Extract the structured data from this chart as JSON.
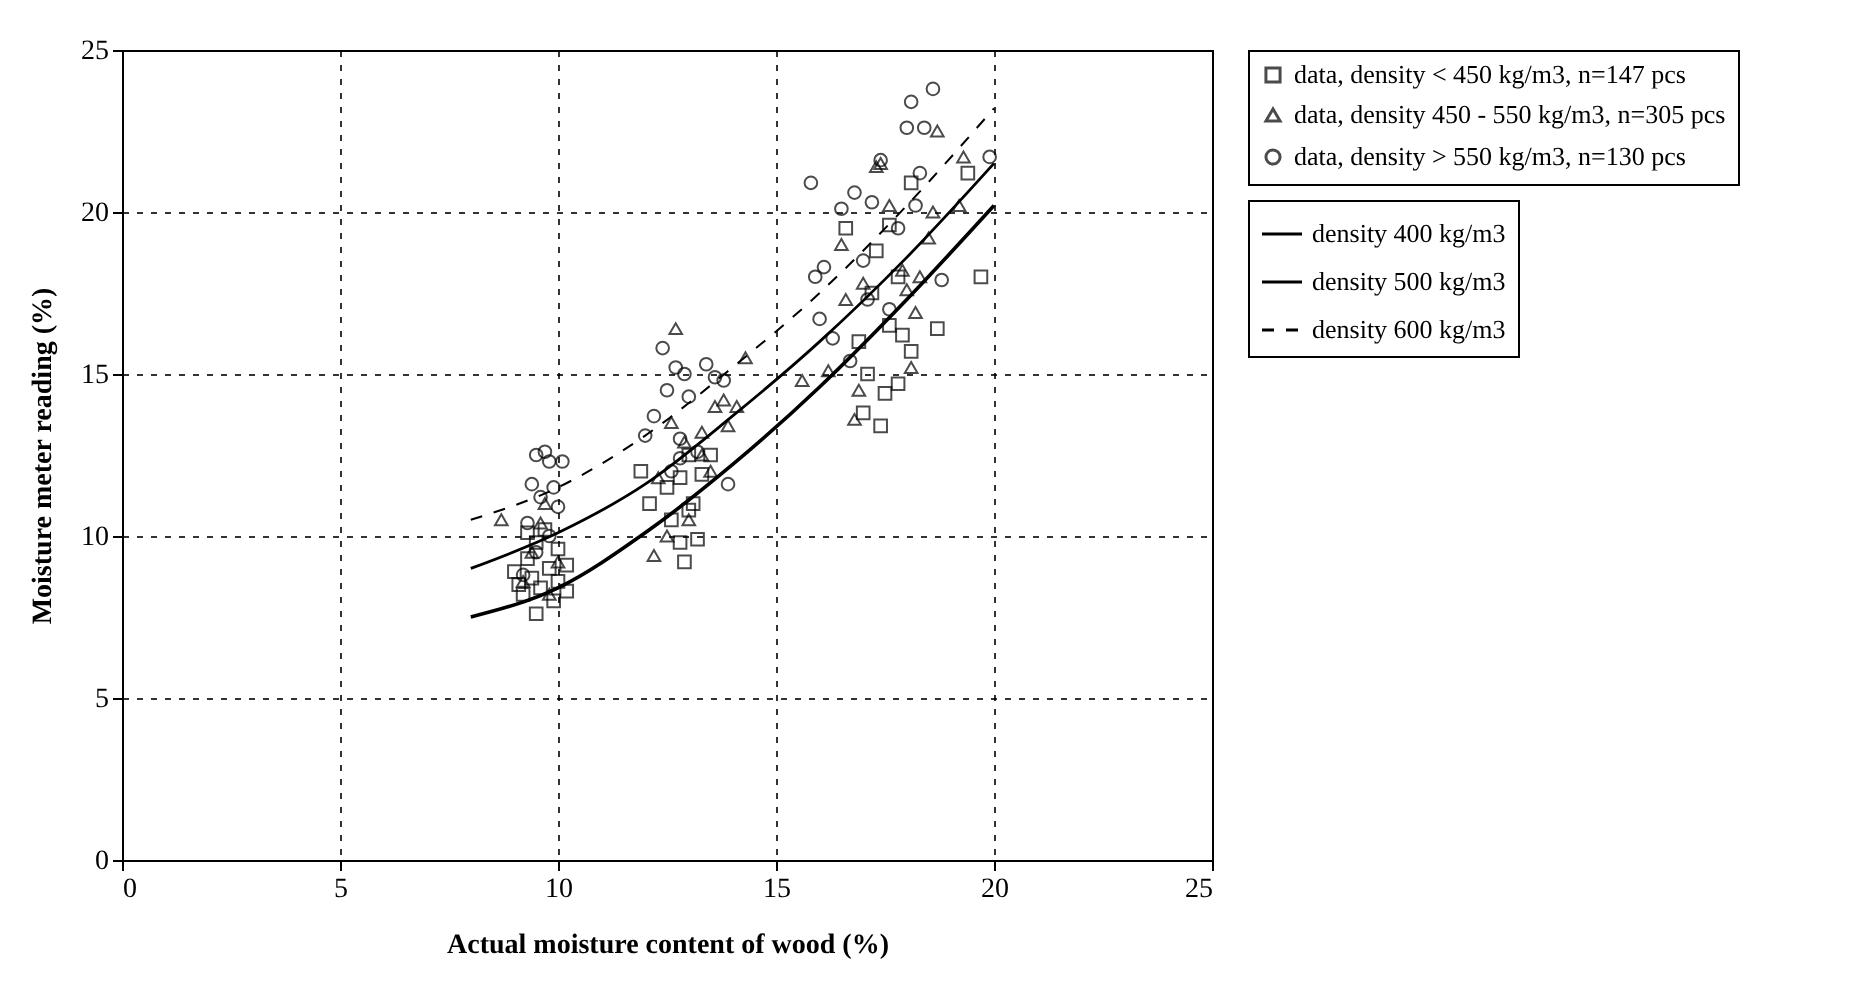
{
  "chart_data": {
    "type": "scatter",
    "xlabel": "Actual moisture content of wood (%)",
    "ylabel": "Moisture meter reading (%)",
    "xlim": [
      0,
      25
    ],
    "ylim": [
      0,
      25
    ],
    "xticks": [
      0,
      5,
      10,
      15,
      20,
      25
    ],
    "yticks": [
      0,
      5,
      10,
      15,
      20,
      25
    ],
    "grid": true,
    "legend": "right",
    "series": [
      {
        "name": "data, density < 450 kg/m3, n=147 pcs",
        "color": "#000000",
        "marker": "square",
        "x": [
          9.0,
          9.1,
          9.2,
          9.3,
          9.4,
          9.5,
          9.5,
          9.6,
          9.7,
          9.8,
          9.9,
          10.0,
          10.0,
          10.2,
          10.2,
          9.3,
          11.9,
          12.1,
          12.5,
          12.6,
          12.8,
          12.8,
          12.9,
          13.0,
          13.0,
          13.1,
          13.2,
          13.3,
          13.5,
          16.6,
          16.9,
          17.0,
          17.1,
          17.2,
          17.4,
          17.5,
          17.6,
          17.8,
          17.8,
          17.9,
          18.1,
          18.1,
          18.7,
          19.4,
          19.7,
          17.3,
          17.6
        ],
        "values": [
          8.9,
          8.5,
          8.2,
          9.3,
          8.7,
          7.6,
          9.8,
          8.4,
          10.2,
          9.0,
          8.0,
          8.6,
          9.6,
          9.1,
          8.3,
          10.1,
          12.0,
          11.0,
          11.5,
          10.5,
          9.8,
          11.8,
          9.2,
          10.8,
          12.5,
          11.0,
          9.9,
          11.9,
          12.5,
          19.5,
          16.0,
          13.8,
          15.0,
          17.5,
          13.4,
          14.4,
          16.5,
          14.7,
          18.0,
          16.2,
          15.7,
          20.9,
          16.4,
          21.2,
          18.0,
          18.8,
          19.6
        ]
      },
      {
        "name": "data, density 450 - 550 kg/m3, n=305 pcs",
        "color": "#000000",
        "marker": "triangle",
        "x": [
          8.7,
          9.2,
          9.4,
          9.6,
          9.8,
          10.0,
          9.7,
          12.2,
          12.3,
          12.5,
          12.6,
          12.7,
          12.9,
          13.0,
          13.3,
          13.5,
          13.6,
          13.8,
          13.9,
          14.1,
          14.3,
          13.3,
          15.6,
          16.2,
          16.5,
          16.6,
          16.8,
          16.9,
          17.0,
          17.3,
          17.4,
          17.6,
          17.9,
          18.0,
          18.2,
          18.3,
          18.5,
          18.6,
          18.7,
          19.2,
          19.3,
          18.1
        ],
        "values": [
          10.5,
          8.6,
          9.5,
          10.4,
          8.2,
          9.2,
          11.0,
          9.4,
          11.8,
          10.0,
          13.5,
          16.4,
          12.9,
          10.5,
          13.2,
          12.0,
          14.0,
          14.2,
          13.4,
          14.0,
          15.5,
          12.5,
          14.8,
          15.1,
          19.0,
          17.3,
          13.6,
          14.5,
          17.8,
          21.4,
          21.5,
          20.2,
          18.2,
          17.6,
          16.9,
          18.0,
          19.2,
          20.0,
          22.5,
          20.2,
          21.7,
          15.2
        ]
      },
      {
        "name": "data, density > 550 kg/m3, n=130 pcs",
        "color": "#000000",
        "marker": "circle",
        "x": [
          9.2,
          9.3,
          9.4,
          9.5,
          9.6,
          9.7,
          9.8,
          9.9,
          10.1,
          9.5,
          10.0,
          9.8,
          12.0,
          12.2,
          12.4,
          12.5,
          12.6,
          12.7,
          12.8,
          12.9,
          13.0,
          13.2,
          13.4,
          13.6,
          13.8,
          13.9,
          12.8,
          15.8,
          15.9,
          16.0,
          16.1,
          16.3,
          16.5,
          16.7,
          16.8,
          17.0,
          17.2,
          17.4,
          17.6,
          17.8,
          18.0,
          18.1,
          18.3,
          18.4,
          18.6,
          18.8,
          19.9,
          17.1,
          18.2
        ],
        "values": [
          8.8,
          10.4,
          11.6,
          12.5,
          11.2,
          12.6,
          10.0,
          11.5,
          12.3,
          9.5,
          10.9,
          12.3,
          13.1,
          13.7,
          15.8,
          14.5,
          12.0,
          15.2,
          13.0,
          15.0,
          14.3,
          12.6,
          15.3,
          14.9,
          14.8,
          11.6,
          12.4,
          20.9,
          18.0,
          16.7,
          18.3,
          16.1,
          20.1,
          15.4,
          20.6,
          18.5,
          20.3,
          21.6,
          17.0,
          19.5,
          22.6,
          23.4,
          21.2,
          22.6,
          23.8,
          17.9,
          21.7,
          17.3,
          20.2
        ]
      },
      {
        "name": "density 400 kg/m3",
        "type": "line",
        "color": "#000000",
        "line_style": "solid",
        "x": [
          8,
          10,
          12,
          14,
          16,
          18,
          20
        ],
        "values": [
          7.5,
          8.4,
          10.1,
          12.2,
          14.6,
          17.3,
          20.2
        ]
      },
      {
        "name": "density 500 kg/m3",
        "type": "line",
        "color": "#000000",
        "line_style": "solid",
        "x": [
          8,
          10,
          12,
          14,
          16,
          18,
          20
        ],
        "values": [
          9.0,
          10.1,
          11.6,
          13.7,
          16.0,
          18.6,
          21.5
        ]
      },
      {
        "name": "density 600 kg/m3",
        "type": "line",
        "color": "#000000",
        "line_style": "dashed",
        "x": [
          8,
          10,
          12,
          14,
          16,
          18,
          20
        ],
        "values": [
          10.5,
          11.5,
          13.1,
          15.2,
          17.5,
          20.2,
          23.2
        ]
      }
    ]
  }
}
